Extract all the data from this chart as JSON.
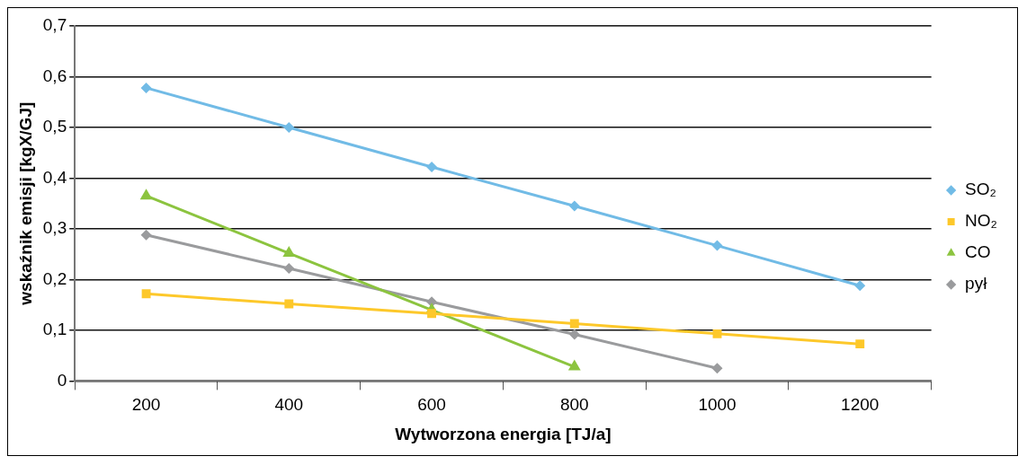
{
  "chart_data": {
    "type": "line",
    "xlabel": "Wytworzona energia [TJ/a]",
    "ylabel": "wskaźnik emisji [kgX/GJ]",
    "categories": [
      "200",
      "400",
      "600",
      "800",
      "1000",
      "1200"
    ],
    "series": [
      {
        "name": "SO₂",
        "color": "#71bbe6",
        "marker": "diamond",
        "values": [
          0.578,
          0.5,
          0.422,
          0.345,
          0.267,
          0.188
        ]
      },
      {
        "name": "NO₂",
        "color": "#fdc82a",
        "marker": "square",
        "values": [
          0.172,
          0.152,
          0.133,
          0.113,
          0.093,
          0.073
        ]
      },
      {
        "name": "CO",
        "color": "#8cc43f",
        "marker": "triangle",
        "values": [
          0.365,
          0.252,
          0.14,
          0.028,
          null,
          null
        ]
      },
      {
        "name": "pył",
        "color": "#9a9b9d",
        "marker": "diamond",
        "values": [
          0.288,
          0.222,
          0.156,
          0.092,
          0.025,
          null
        ]
      }
    ],
    "ylim": [
      0,
      0.7
    ],
    "yticks": [
      0,
      {
        "value": 0.1,
        "label": "0,1"
      },
      {
        "value": 0.2,
        "label": "0,2"
      },
      {
        "value": 0.3,
        "label": "0,3"
      },
      {
        "value": 0.4,
        "label": "0,4"
      },
      {
        "value": 0.5,
        "label": "0,5"
      },
      {
        "value": 0.6,
        "label": "0,6"
      },
      {
        "value": 0.7,
        "label": "0,7"
      }
    ],
    "grid": "y",
    "legend": "right",
    "line_style": "solid"
  }
}
